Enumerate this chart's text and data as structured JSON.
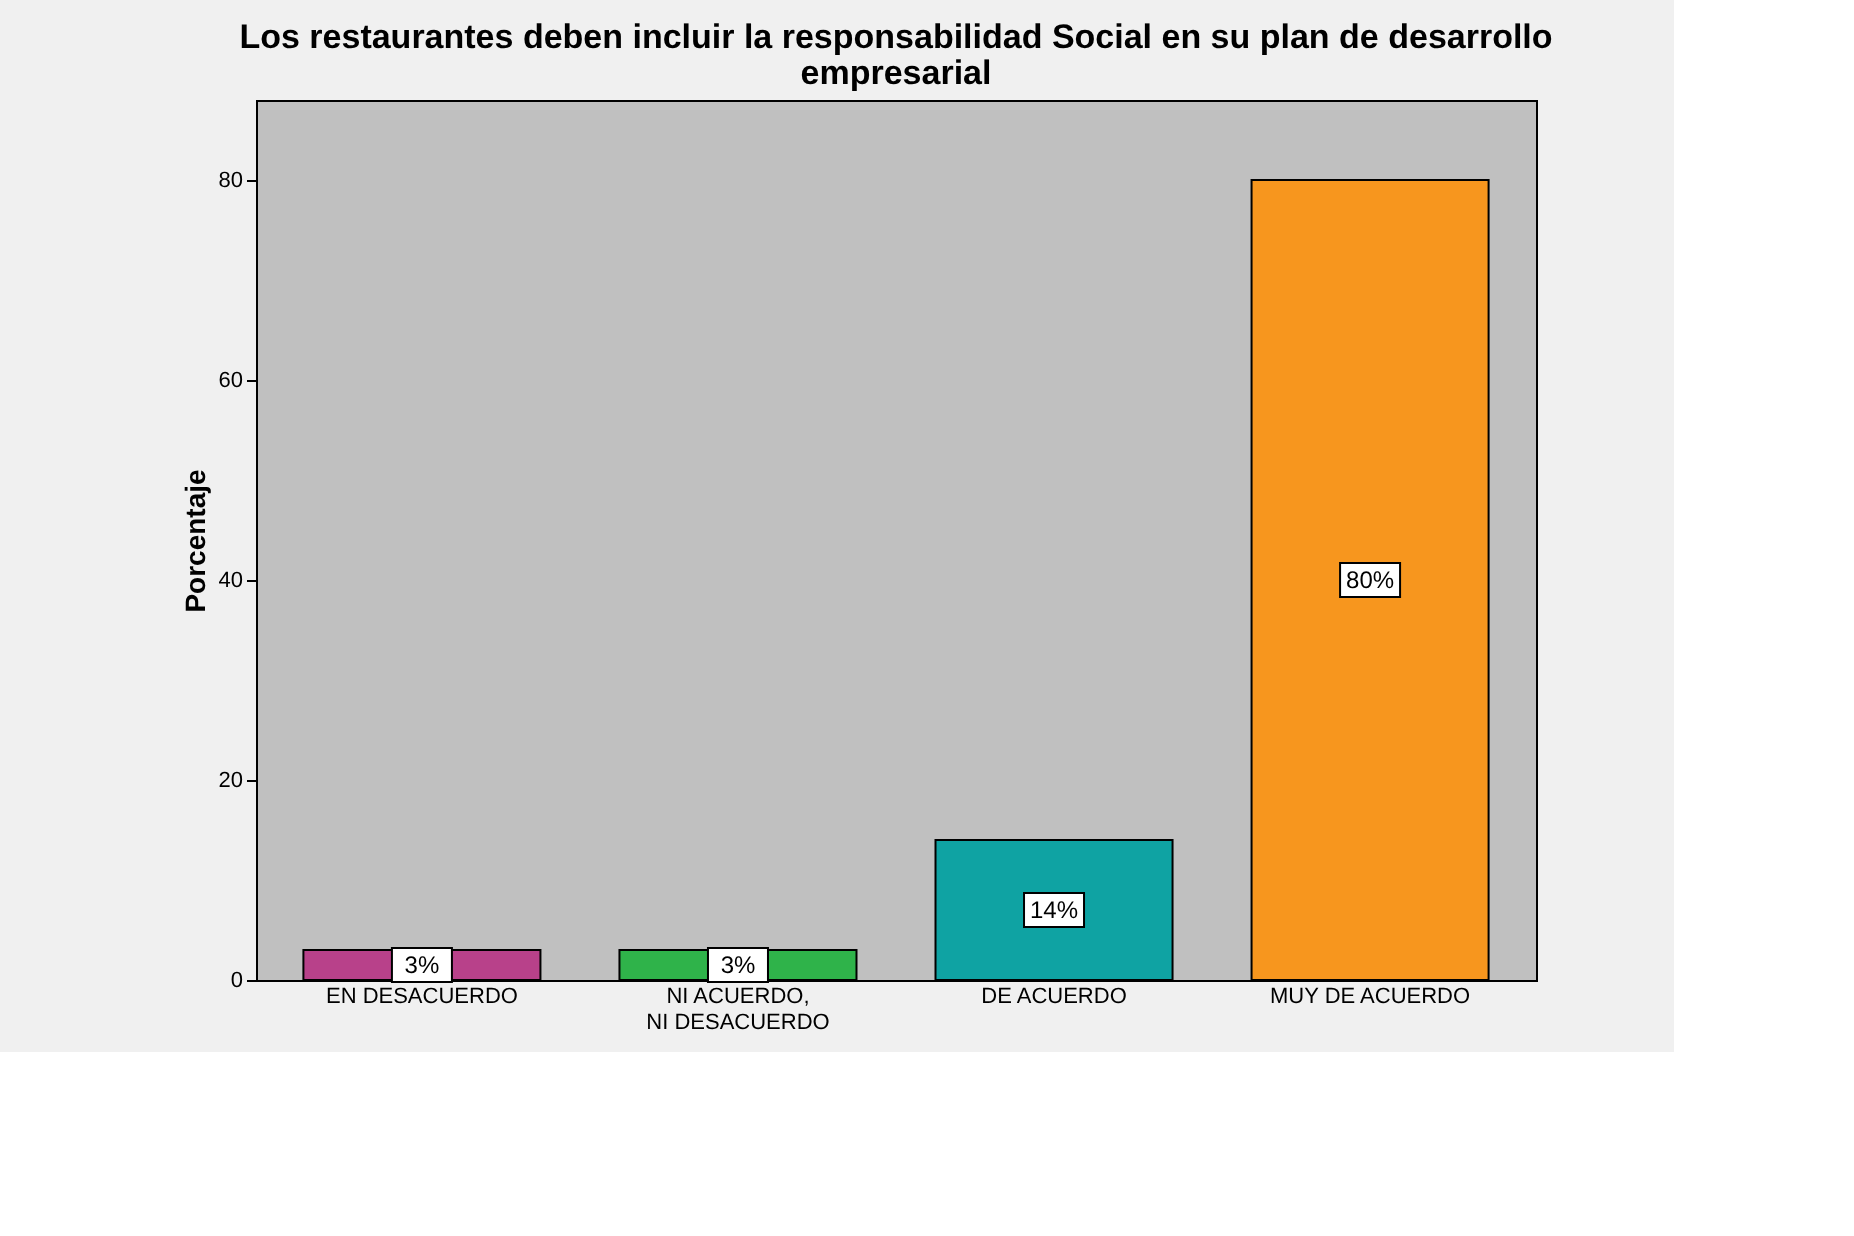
{
  "chart_data": {
    "type": "bar",
    "title": "Los restaurantes deben incluir la responsabilidad Social en su plan de desarrollo empresarial",
    "ylabel": "Porcentaje",
    "categories": [
      "EN DESACUERDO",
      "NI ACUERDO, NI DESACUERDO",
      "DE ACUERDO",
      "MUY DE ACUERDO"
    ],
    "values": [
      3,
      3,
      14,
      80
    ],
    "colors": [
      "#b8418a",
      "#2fb34a",
      "#0fa3a3",
      "#f7961e"
    ],
    "value_labels": [
      "3%",
      "3%",
      "14%",
      "80%"
    ],
    "ylim": [
      0,
      88
    ],
    "yticks": [
      0,
      20,
      40,
      60,
      80
    ],
    "grid": false
  }
}
